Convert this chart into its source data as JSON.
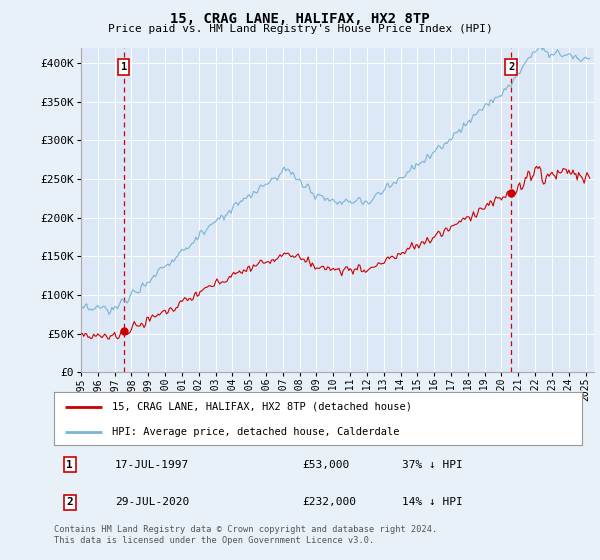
{
  "title": "15, CRAG LANE, HALIFAX, HX2 8TP",
  "subtitle": "Price paid vs. HM Land Registry's House Price Index (HPI)",
  "x_start": 1995.0,
  "x_end": 2025.5,
  "y_min": 0,
  "y_max": 420000,
  "y_ticks": [
    0,
    50000,
    100000,
    150000,
    200000,
    250000,
    300000,
    350000,
    400000
  ],
  "y_tick_labels": [
    "£0",
    "£50K",
    "£100K",
    "£150K",
    "£200K",
    "£250K",
    "£300K",
    "£350K",
    "£400K"
  ],
  "x_ticks": [
    1995,
    1996,
    1997,
    1998,
    1999,
    2000,
    2001,
    2002,
    2003,
    2004,
    2005,
    2006,
    2007,
    2008,
    2009,
    2010,
    2011,
    2012,
    2013,
    2014,
    2015,
    2016,
    2017,
    2018,
    2019,
    2020,
    2021,
    2022,
    2023,
    2024,
    2025
  ],
  "hpi_color": "#7ab3d4",
  "price_color": "#cc0000",
  "vline_color": "#cc0000",
  "marker1_x": 1997.54,
  "marker1_y": 53000,
  "marker1_label": "1",
  "marker1_date": "17-JUL-1997",
  "marker1_price": "£53,000",
  "marker1_hpi": "37% ↓ HPI",
  "marker2_x": 2020.57,
  "marker2_y": 232000,
  "marker2_label": "2",
  "marker2_date": "29-JUL-2020",
  "marker2_price": "£232,000",
  "marker2_hpi": "14% ↓ HPI",
  "legend_line1": "15, CRAG LANE, HALIFAX, HX2 8TP (detached house)",
  "legend_line2": "HPI: Average price, detached house, Calderdale",
  "footer": "Contains HM Land Registry data © Crown copyright and database right 2024.\nThis data is licensed under the Open Government Licence v3.0.",
  "bg_color": "#e8f0f8",
  "plot_bg": "#dce8f5"
}
